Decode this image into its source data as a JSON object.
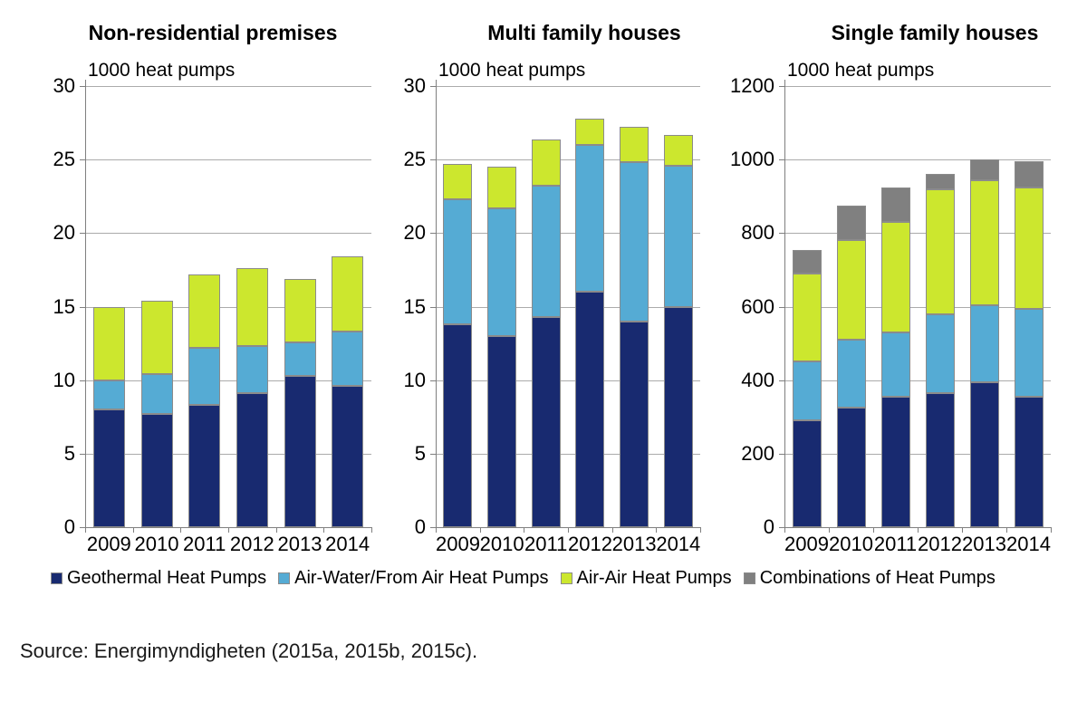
{
  "figure": {
    "background": "#ffffff",
    "unit_label": "1000 heat pumps"
  },
  "colors": {
    "geothermal": "#182a70",
    "air_water": "#55abd4",
    "air_air": "#cce72e",
    "combinations": "#808080",
    "gridline": "#ababab",
    "axis": "#7f7f7f",
    "bar_border": "#8b8b8b",
    "text": "#000000"
  },
  "legend": {
    "position": "bottom",
    "items": [
      {
        "label": "Geothermal Heat Pumps",
        "color": "#182a70"
      },
      {
        "label": "Air-Water/From Air Heat Pumps",
        "color": "#55abd4"
      },
      {
        "label": "Air-Air Heat Pumps",
        "color": "#cce72e"
      },
      {
        "label": "Combinations of Heat Pumps",
        "color": "#808080"
      }
    ]
  },
  "chart_data": [
    {
      "type": "bar",
      "stacked": true,
      "title": "Non-residential premises",
      "unit_label": "1000 heat pumps",
      "categories": [
        "2009",
        "2010",
        "2011",
        "2012",
        "2013",
        "2014"
      ],
      "ylim": [
        0,
        30
      ],
      "ytick_step": 5,
      "yticks": [
        0,
        5,
        10,
        15,
        20,
        25,
        30
      ],
      "grid": true,
      "series": [
        {
          "name": "Geothermal Heat Pumps",
          "color": "#182a70",
          "values": [
            8.0,
            7.7,
            8.3,
            9.1,
            10.3,
            9.6
          ]
        },
        {
          "name": "Air-Water/From Air Heat Pumps",
          "color": "#55abd4",
          "values": [
            2.0,
            2.7,
            3.9,
            3.2,
            2.3,
            3.7
          ]
        },
        {
          "name": "Air-Air Heat Pumps",
          "color": "#cce72e",
          "values": [
            5.0,
            5.0,
            5.0,
            5.3,
            4.3,
            5.1
          ]
        },
        {
          "name": "Combinations of Heat Pumps",
          "color": "#808080",
          "values": [
            0,
            0,
            0,
            0,
            0,
            0
          ]
        }
      ]
    },
    {
      "type": "bar",
      "stacked": true,
      "title": "Multi family houses",
      "unit_label": "1000 heat pumps",
      "categories": [
        "2009",
        "2010",
        "2011",
        "2012",
        "2013",
        "2014"
      ],
      "ylim": [
        0,
        30
      ],
      "ytick_step": 5,
      "yticks": [
        0,
        5,
        10,
        15,
        20,
        25,
        30
      ],
      "grid": true,
      "series": [
        {
          "name": "Geothermal Heat Pumps",
          "color": "#182a70",
          "values": [
            13.8,
            13.0,
            14.3,
            16.0,
            14.0,
            15.0
          ]
        },
        {
          "name": "Air-Water/From Air Heat Pumps",
          "color": "#55abd4",
          "values": [
            8.5,
            8.7,
            8.9,
            10.0,
            10.8,
            9.6
          ]
        },
        {
          "name": "Air-Air Heat Pumps",
          "color": "#cce72e",
          "values": [
            2.4,
            2.8,
            3.2,
            1.8,
            2.4,
            2.1
          ]
        },
        {
          "name": "Combinations of Heat Pumps",
          "color": "#808080",
          "values": [
            0,
            0,
            0,
            0,
            0,
            0
          ]
        }
      ]
    },
    {
      "type": "bar",
      "stacked": true,
      "title": "Single family houses",
      "unit_label": "1000 heat pumps",
      "categories": [
        "2009",
        "2010",
        "2011",
        "2012",
        "2013",
        "2014"
      ],
      "ylim": [
        0,
        1200
      ],
      "ytick_step": 200,
      "yticks": [
        0,
        200,
        400,
        600,
        800,
        1000,
        1200
      ],
      "grid": true,
      "series": [
        {
          "name": "Geothermal Heat Pumps",
          "color": "#182a70",
          "values": [
            290,
            325,
            355,
            365,
            395,
            355
          ]
        },
        {
          "name": "Air-Water/From Air Heat Pumps",
          "color": "#55abd4",
          "values": [
            160,
            185,
            175,
            215,
            210,
            240
          ]
        },
        {
          "name": "Air-Air Heat Pumps",
          "color": "#cce72e",
          "values": [
            240,
            270,
            300,
            340,
            340,
            330
          ]
        },
        {
          "name": "Combinations of Heat Pumps",
          "color": "#808080",
          "values": [
            65,
            95,
            95,
            40,
            55,
            70
          ]
        }
      ]
    }
  ],
  "source_note": "Source:  Energimyndigheten (2015a, 2015b, 2015c)."
}
